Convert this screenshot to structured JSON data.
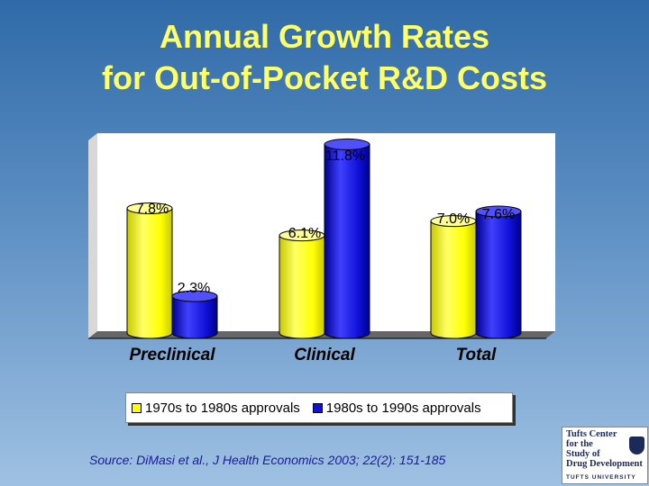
{
  "title": {
    "line1": "Annual Growth Rates",
    "line2": "for Out-of-Pocket R&D Costs"
  },
  "chart_data": {
    "type": "bar",
    "categories": [
      "Preclinical",
      "Clinical",
      "Total"
    ],
    "series": [
      {
        "name": "1970s to 1980s approvals",
        "values": [
          7.8,
          6.1,
          7.0
        ],
        "labels": [
          "7.8%",
          "6.1%",
          "7.0%"
        ],
        "color": "#ffff00"
      },
      {
        "name": "1980s to 1990s approvals",
        "values": [
          2.3,
          11.8,
          7.6
        ],
        "labels": [
          "2.3%",
          "11.8%",
          "7.6%"
        ],
        "color": "#1010d8"
      }
    ],
    "ylim": [
      0,
      12.5
    ],
    "grid": false,
    "legend_position": "bottom"
  },
  "legend": {
    "item1": "1970s to 1980s approvals",
    "item2": "1980s to 1990s approvals",
    "color1": "#ffff00",
    "color2": "#1010d8"
  },
  "source": "Source: DiMasi et al., J Health Economics 2003; 22(2): 151-185",
  "logo": {
    "lines": [
      "Tufts Center",
      "for the",
      "Study of",
      "Drug Development"
    ],
    "bottom": "TUFTS UNIVERSITY"
  }
}
